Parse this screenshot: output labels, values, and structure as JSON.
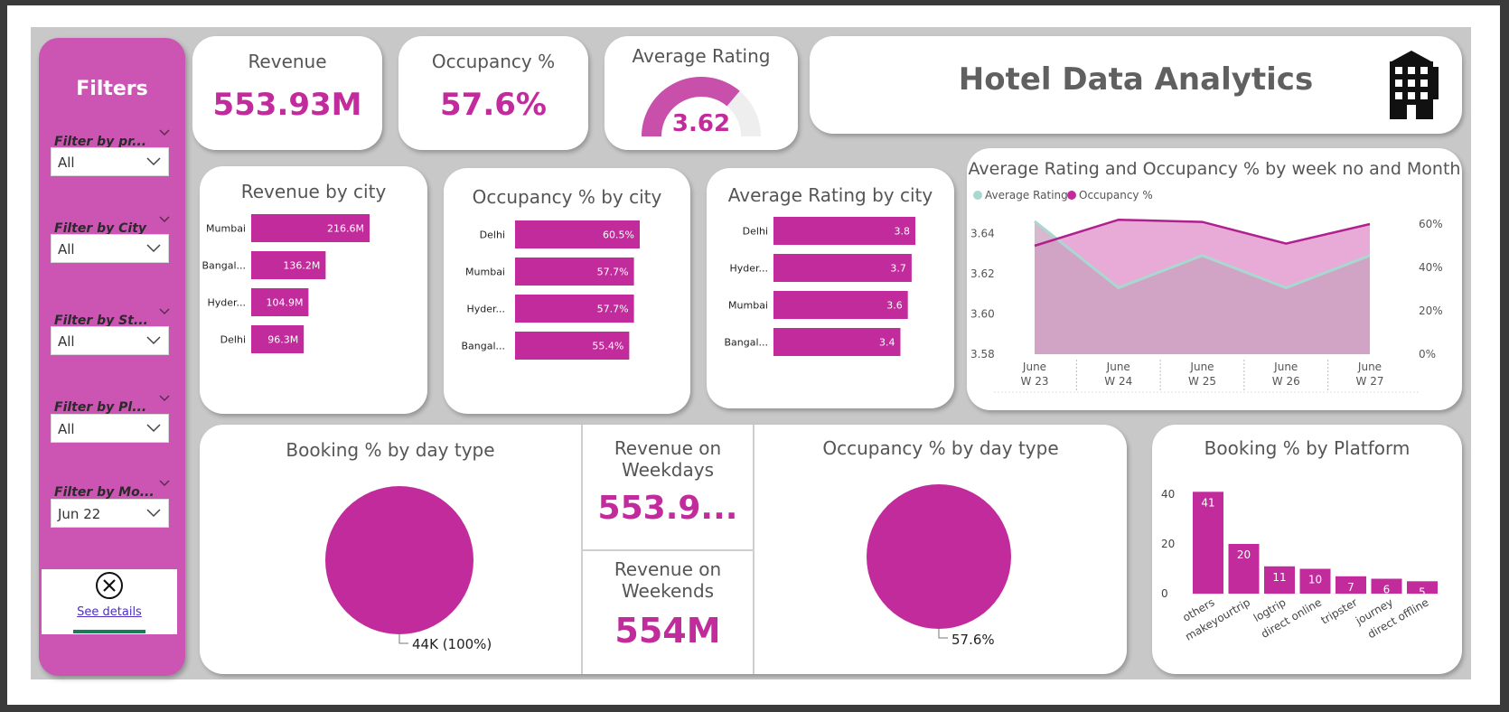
{
  "title": "Hotel Data Analytics",
  "colors": {
    "accent": "#c12b9c",
    "sidebar": "#cc55b4",
    "teal": "#a8d8cf",
    "area": "#e7a6d6"
  },
  "icons": {
    "building": "hotel-building-icon",
    "close": "close-circle-icon"
  },
  "sidebar": {
    "title": "Filters",
    "filters": [
      {
        "label": "Filter by pr...",
        "value": "All"
      },
      {
        "label": "Filter by City",
        "value": "All"
      },
      {
        "label": "Filter by St...",
        "value": "All"
      },
      {
        "label": "Filter by Pl...",
        "value": "All"
      },
      {
        "label": "Filter by Mo...",
        "value": "Jun 22"
      }
    ],
    "see_details": "See details"
  },
  "kpis": {
    "revenue": {
      "title": "Revenue",
      "value": "553.93M"
    },
    "occupancy": {
      "title": "Occupancy %",
      "value": "57.6%"
    },
    "rating": {
      "title": "Average Rating",
      "value": "3.62",
      "gauge_fraction": 0.724
    },
    "weekdays": {
      "title_line1": "Revenue on",
      "title_line2": "Weekdays",
      "value": "553.9..."
    },
    "weekends": {
      "title_line1": "Revenue on",
      "title_line2": "Weekends",
      "value": "554M"
    }
  },
  "chart_data": [
    {
      "id": "revenue-by-city",
      "type": "bar",
      "orientation": "horizontal",
      "title": "Revenue by city",
      "categories": [
        "Mumbai",
        "Bangal...",
        "Hyder...",
        "Delhi"
      ],
      "values": [
        216.6,
        136.2,
        104.9,
        96.3
      ],
      "value_labels": [
        "216.6M",
        "136.2M",
        "104.9M",
        "96.3M"
      ],
      "xlim": [
        0,
        216.6
      ]
    },
    {
      "id": "occupancy-by-city",
      "type": "bar",
      "orientation": "horizontal",
      "title": "Occupancy % by city",
      "categories": [
        "Delhi",
        "Mumbai",
        "Hyder...",
        "Bangal..."
      ],
      "values": [
        60.5,
        57.7,
        57.7,
        55.4
      ],
      "value_labels": [
        "60.5%",
        "57.7%",
        "57.7%",
        "55.4%"
      ],
      "xlim": [
        0,
        60.5
      ]
    },
    {
      "id": "rating-by-city",
      "type": "bar",
      "orientation": "horizontal",
      "title": "Average Rating by city",
      "categories": [
        "Delhi",
        "Hyder...",
        "Mumbai",
        "Bangal..."
      ],
      "values": [
        3.8,
        3.7,
        3.6,
        3.4
      ],
      "value_labels": [
        "3.8",
        "3.7",
        "3.6",
        "3.4"
      ],
      "xlim": [
        0,
        3.8
      ]
    },
    {
      "id": "rating-occupancy-by-week",
      "type": "area",
      "title": "Average Rating and Occupancy % by week no and Month",
      "x_line1": [
        "June",
        "June",
        "June",
        "June",
        "June"
      ],
      "x_line2": [
        "W 23",
        "W 24",
        "W 25",
        "W 26",
        "W 27"
      ],
      "series": [
        {
          "name": "Average Rating",
          "values": [
            3.646,
            3.613,
            3.629,
            3.613,
            3.629
          ],
          "axis": "left"
        },
        {
          "name": "Occupancy %",
          "values": [
            50,
            62,
            61,
            51,
            60
          ],
          "axis": "right"
        }
      ],
      "ylim_left": [
        3.58,
        3.65
      ],
      "yticks_left": [
        "3.64",
        "3.62",
        "3.60",
        "3.58"
      ],
      "ylim_right": [
        0,
        65
      ],
      "yticks_right": [
        "60%",
        "40%",
        "20%",
        "0%"
      ],
      "legend": "top-left"
    },
    {
      "id": "booking-by-daytype",
      "type": "pie",
      "title": "Booking % by day type",
      "slices": [
        {
          "label": "44K (100%)",
          "value": 100
        }
      ]
    },
    {
      "id": "occupancy-by-daytype",
      "type": "pie",
      "title": "Occupancy % by day type",
      "slices": [
        {
          "label": "57.6%",
          "value": 100
        }
      ]
    },
    {
      "id": "booking-by-platform",
      "type": "bar",
      "title": "Booking % by Platform",
      "categories": [
        "others",
        "makeyourtrip",
        "logtrip",
        "direct online",
        "tripster",
        "journey",
        "direct offline"
      ],
      "values": [
        41,
        20,
        11,
        10,
        7,
        6,
        5
      ],
      "yticks": [
        "40",
        "20",
        "0"
      ],
      "ylim": [
        0,
        45
      ]
    }
  ]
}
